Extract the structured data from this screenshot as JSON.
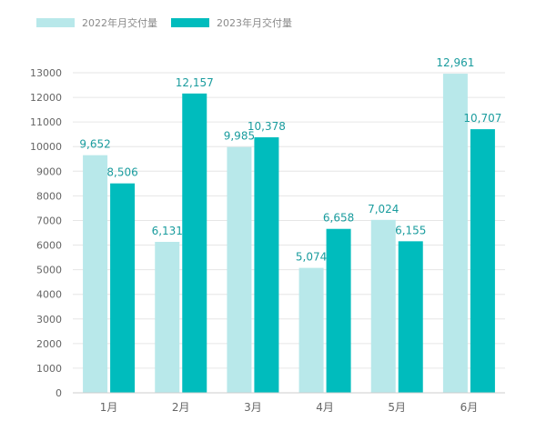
{
  "chart_data": {
    "type": "bar",
    "categories": [
      "1月",
      "2月",
      "3月",
      "4月",
      "5月",
      "6月"
    ],
    "series": [
      {
        "name": "2022年月交付量",
        "values": [
          9652,
          6131,
          9985,
          5074,
          7024,
          12961
        ],
        "value_labels": [
          "9,652",
          "6,131",
          "9,985",
          "5,074",
          "7,024",
          "12,961"
        ],
        "color": "#b8e8ea"
      },
      {
        "name": "2023年月交付量",
        "values": [
          8506,
          12157,
          10378,
          6658,
          6155,
          10707
        ],
        "value_labels": [
          "8,506",
          "12,157",
          "10,378",
          "6,658",
          "6,155",
          "10,707"
        ],
        "color": "#00bcbd"
      }
    ],
    "yticks": [
      "0",
      "1000",
      "2000",
      "3000",
      "4000",
      "5000",
      "6000",
      "7000",
      "8000",
      "9000",
      "10000",
      "11000",
      "12000",
      "13000"
    ],
    "ylim": [
      0,
      13000
    ],
    "grid": true,
    "legend_position": "top-left",
    "label_color": "#1a9c9e"
  }
}
